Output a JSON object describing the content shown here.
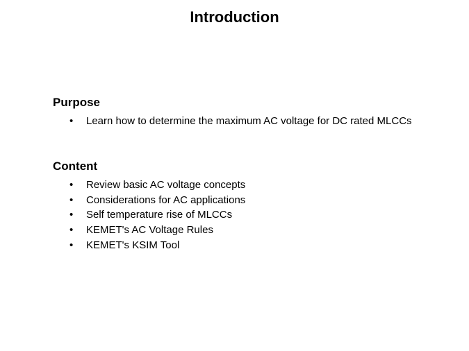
{
  "title": "Introduction",
  "sections": [
    {
      "heading": "Purpose",
      "items": [
        "Learn how to determine the maximum AC voltage for DC rated MLCCs"
      ]
    },
    {
      "heading": "Content",
      "items": [
        "Review basic AC voltage concepts",
        "Considerations for AC applications",
        "Self temperature rise of MLCCs",
        "KEMET's AC Voltage Rules",
        "KEMET's KSIM Tool"
      ]
    }
  ],
  "colors": {
    "background": "#ffffff",
    "text": "#000000"
  },
  "typography": {
    "title_fontsize": 22,
    "heading_fontsize": 17,
    "body_fontsize": 15
  }
}
